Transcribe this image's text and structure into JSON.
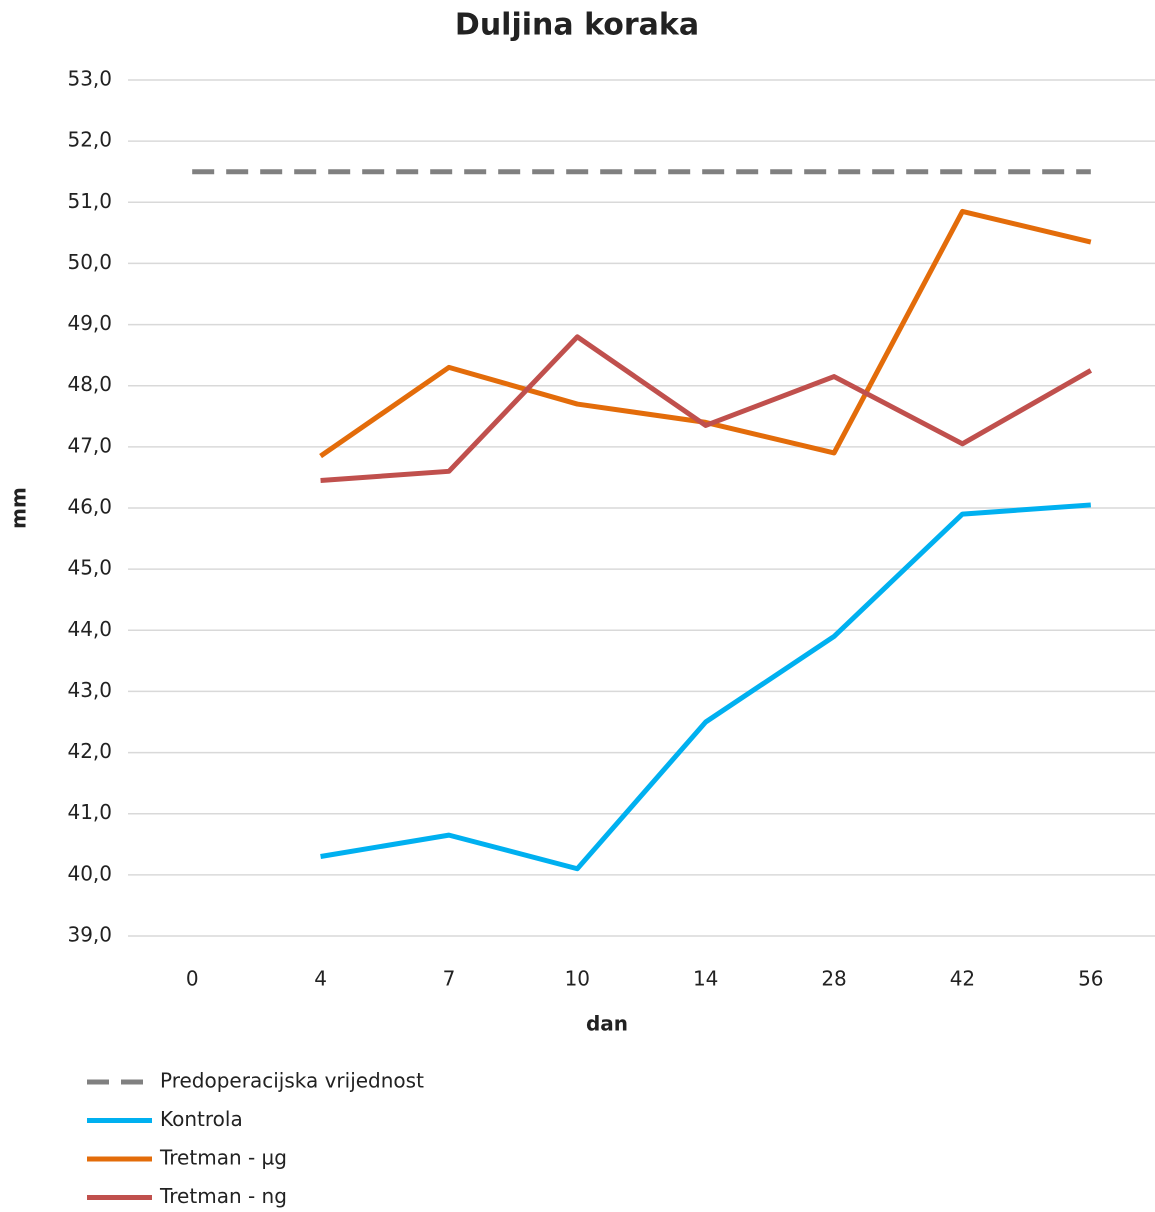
{
  "chart_data": {
    "type": "line",
    "title": "Duljina koraka",
    "x_label": "dan",
    "y_label": "mm",
    "categories": [
      "0",
      "4",
      "7",
      "10",
      "14",
      "28",
      "42",
      "56"
    ],
    "ylim": [
      39,
      53
    ],
    "yticks": [
      {
        "value": 39,
        "label": "39,0"
      },
      {
        "value": 40,
        "label": "40,0"
      },
      {
        "value": 41,
        "label": "41,0"
      },
      {
        "value": 42,
        "label": "42,0"
      },
      {
        "value": 43,
        "label": "43,0"
      },
      {
        "value": 44,
        "label": "44,0"
      },
      {
        "value": 45,
        "label": "45,0"
      },
      {
        "value": 46,
        "label": "46,0"
      },
      {
        "value": 47,
        "label": "47,0"
      },
      {
        "value": 48,
        "label": "48,0"
      },
      {
        "value": 49,
        "label": "49,0"
      },
      {
        "value": 50,
        "label": "50,0"
      },
      {
        "value": 51,
        "label": "51,0"
      },
      {
        "value": 52,
        "label": "52,0"
      },
      {
        "value": 53,
        "label": "53,0"
      }
    ],
    "grid": true,
    "series": [
      {
        "name": "Predoperacijska vrijednost",
        "color": "#808080",
        "dashed": true,
        "values": [
          51.5,
          51.5,
          51.5,
          51.5,
          51.5,
          51.5,
          51.5,
          51.5
        ]
      },
      {
        "name": "Kontrola",
        "color": "#00b0f0",
        "values": [
          null,
          40.3,
          40.65,
          40.1,
          42.5,
          43.9,
          45.9,
          46.05
        ]
      },
      {
        "name": "Tretman - µg",
        "color": "#e36c0a",
        "values": [
          null,
          46.85,
          48.3,
          47.7,
          47.4,
          46.9,
          50.85,
          50.35
        ]
      },
      {
        "name": "Tretman - ng",
        "color": "#c0504d",
        "values": [
          null,
          46.45,
          46.6,
          48.8,
          47.35,
          48.15,
          47.05,
          48.25
        ]
      }
    ]
  }
}
